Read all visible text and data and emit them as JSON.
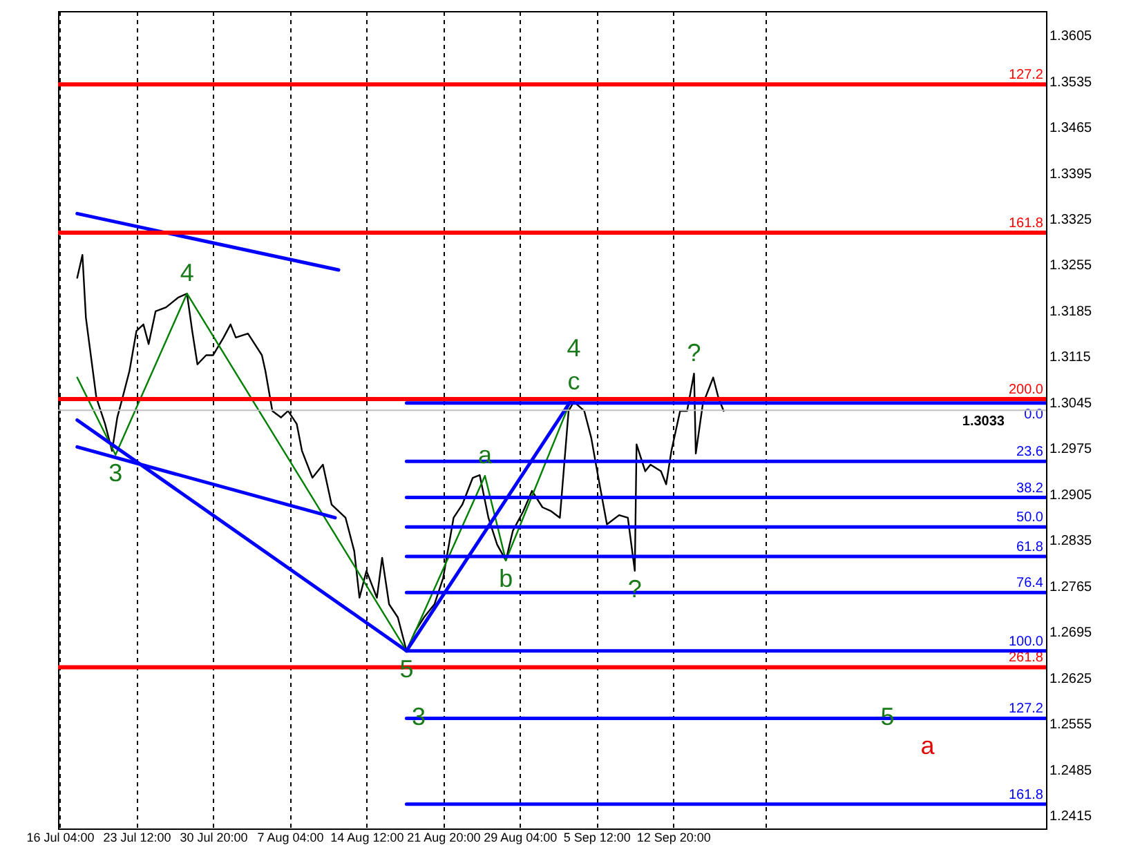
{
  "chart_data": {
    "type": "line",
    "xlim": [
      "--07-16T00:00",
      "--10-18T12:00"
    ],
    "ylim": [
      1.2395,
      1.3642
    ],
    "xticks": [
      {
        "value": "--07-16T04:00",
        "label": "16 Jul 04:00"
      },
      {
        "value": "--07-23T12:00",
        "label": "23 Jul 12:00"
      },
      {
        "value": "--07-30T20:00",
        "label": "30 Jul 20:00"
      },
      {
        "value": "--08-07T04:00",
        "label": "7 Aug 04:00"
      },
      {
        "value": "--08-14T12:00",
        "label": "14 Aug 12:00"
      },
      {
        "value": "--08-21T20:00",
        "label": "21 Aug 20:00"
      },
      {
        "value": "--08-29T04:00",
        "label": "29 Aug 04:00"
      },
      {
        "value": "--09-05T12:00",
        "label": "5 Sep 12:00"
      },
      {
        "value": "--09-12T20:00",
        "label": "12 Sep 20:00"
      },
      {
        "value": "--09-21T16:00",
        "label": null
      }
    ],
    "yticks": [
      1.2415,
      1.2485,
      1.2555,
      1.2625,
      1.2695,
      1.2765,
      1.2835,
      1.2905,
      1.2975,
      1.3045,
      1.3115,
      1.3185,
      1.3255,
      1.3325,
      1.3395,
      1.3465,
      1.3535,
      1.3605
    ],
    "grid": "x",
    "line_style": "solid",
    "series": [
      {
        "color": "#000000",
        "x": [
          "--07-17T20:00",
          "--07-18T08:00",
          "--07-18T16:00",
          "--07-19T04:00",
          "--07-19T16:00",
          "--07-20T12:00",
          "--07-21T04:00",
          "--07-21T16:00",
          "--07-22T04:00",
          "--07-22T20:00",
          "--07-23T12:00",
          "--07-24T04:00",
          "--07-24T16:00",
          "--07-25T08:00",
          "--07-26T08:00",
          "--07-27T12:00",
          "--07-28T08:00",
          "--07-28T20:00",
          "--07-29T08:00",
          "--07-30T04:00",
          "--07-30T20:00",
          "--07-31T20:00",
          "--08-01T12:00",
          "--08-02T00:00",
          "--08-03T04:00",
          "--08-04T12:00",
          "--08-04T20:00",
          "--08-05T12:00",
          "--08-06T08:00",
          "--08-07T00:00",
          "--08-07T20:00",
          "--08-08T08:00",
          "--08-09T08:00",
          "--08-10T08:00",
          "--08-11T04:00",
          "--08-12T12:00",
          "--08-13T08:00",
          "--08-13T20:00",
          "--08-14T12:00",
          "--08-15T12:00",
          "--08-16T00:00",
          "--08-16T16:00",
          "--08-17T12:00",
          "--08-18T08:00",
          "--08-19T04:00",
          "--08-20T00:00",
          "--08-21T00:00",
          "--08-21T20:00",
          "--08-22T20:00",
          "--08-23T16:00",
          "--08-24T16:00",
          "--08-25T08:00",
          "--08-26T04:00",
          "--08-27T00:00",
          "--08-27T20:00",
          "--08-28T12:00",
          "--08-29T12:00",
          "--08-30T08:00",
          "--08-31T08:00",
          "--09-01T04:00",
          "--09-02T00:00",
          "--09-02T20:00",
          "--09-03T08:00",
          "--09-04T08:00",
          "--09-05T00:00",
          "--09-05T12:00",
          "--09-06T12:00",
          "--09-07T16:00",
          "--09-08T12:00",
          "--09-09T04:00",
          "--09-09T08:00",
          "--09-10T04:00",
          "--09-10T16:00",
          "--09-11T16:00",
          "--09-12T04:00",
          "--09-12T16:00",
          "--09-13T12:00",
          "--09-14T04:00",
          "--09-14T20:00",
          "--09-15T00:00",
          "--09-15T16:00",
          "--09-16T16:00",
          "--09-17T04:00",
          "--09-17T16:00"
        ],
        "values": [
          1.3235,
          1.327,
          1.3174,
          1.3113,
          1.3052,
          1.3012,
          1.2971,
          1.3022,
          1.3052,
          1.3093,
          1.3154,
          1.3164,
          1.3134,
          1.3184,
          1.319,
          1.3205,
          1.3211,
          1.3154,
          1.3103,
          1.3117,
          1.3117,
          1.3144,
          1.3164,
          1.3144,
          1.315,
          1.3117,
          1.3093,
          1.3032,
          1.3022,
          1.3032,
          1.3012,
          1.2971,
          1.293,
          1.295,
          1.2889,
          1.2869,
          1.2818,
          1.2747,
          1.2788,
          1.2747,
          1.2808,
          1.2737,
          1.2717,
          1.2666,
          1.2696,
          1.2717,
          1.2737,
          1.2777,
          1.2869,
          1.2889,
          1.293,
          1.2934,
          1.2869,
          1.2828,
          1.2804,
          1.2849,
          1.2879,
          1.291,
          1.2885,
          1.2879,
          1.2869,
          1.3032,
          1.3046,
          1.3032,
          1.2991,
          1.2946,
          1.2859,
          1.2873,
          1.2869,
          1.2788,
          1.2981,
          1.294,
          1.295,
          1.294,
          1.292,
          1.2971,
          1.3032,
          1.3032,
          1.3089,
          1.2967,
          1.3042,
          1.3083,
          1.3052,
          1.3032
        ]
      },
      {
        "color": "#008000",
        "x": [
          "--07-17T20:00",
          "--07-21T12:00",
          "--07-28T08:00",
          "--08-18T08:00",
          "--08-25T20:00",
          "--08-27T20:00",
          "--09-03T00:00"
        ],
        "values": [
          1.3083,
          1.2965,
          1.3211,
          1.2666,
          1.2933,
          1.2804,
          1.3046
        ]
      },
      {
        "color": "#0000ff",
        "x": [
          "--07-17T20:00",
          "--08-11T20:00"
        ],
        "values": [
          1.3333,
          1.3247
        ]
      },
      {
        "color": "#0000ff",
        "x": [
          "--07-17T20:00",
          "--08-18T08:00"
        ],
        "values": [
          1.3018,
          1.2666
        ]
      },
      {
        "color": "#0000ff",
        "x": [
          "--07-17T20:00",
          "--08-11T12:00"
        ],
        "values": [
          1.2977,
          1.2869
        ]
      },
      {
        "color": "#0000ff",
        "x": [
          "--08-18T08:00",
          "--09-03T00:00"
        ],
        "values": [
          1.2666,
          1.3046
        ]
      },
      {
        "name": "127.2",
        "color": "#ff0000",
        "x": [
          "--07-16T00:00",
          "--10-18T12:00"
        ],
        "values": [
          1.353,
          1.353
        ]
      },
      {
        "name": "161.8",
        "color": "#ff0000",
        "x": [
          "--07-16T00:00",
          "--10-18T12:00"
        ],
        "values": [
          1.3304,
          1.3304
        ]
      },
      {
        "name": "200.0",
        "color": "#ff0000",
        "x": [
          "--07-16T00:00",
          "--10-18T12:00"
        ],
        "values": [
          1.305,
          1.305
        ]
      },
      {
        "name": "261.8",
        "color": "#ff0000",
        "x": [
          "--07-16T00:00",
          "--10-18T12:00"
        ],
        "values": [
          1.2641,
          1.2641
        ]
      },
      {
        "name": "0.0",
        "color": "#0000ff",
        "x": [
          "--08-18T08:00",
          "--10-18T12:00"
        ],
        "values": [
          1.3044,
          1.3044
        ]
      },
      {
        "name": "23.6",
        "color": "#0000ff",
        "x": [
          "--08-18T08:00",
          "--10-18T12:00"
        ],
        "values": [
          1.2955,
          1.2955
        ]
      },
      {
        "name": "38.2",
        "color": "#0000ff",
        "x": [
          "--08-18T08:00",
          "--10-18T12:00"
        ],
        "values": [
          1.29,
          1.29
        ]
      },
      {
        "name": "50.0",
        "color": "#0000ff",
        "x": [
          "--08-18T08:00",
          "--10-18T12:00"
        ],
        "values": [
          1.2855,
          1.2855
        ]
      },
      {
        "name": "61.8",
        "color": "#0000ff",
        "x": [
          "--08-18T08:00",
          "--10-18T12:00"
        ],
        "values": [
          1.281,
          1.281
        ]
      },
      {
        "name": "76.4",
        "color": "#0000ff",
        "x": [
          "--08-18T08:00",
          "--10-18T12:00"
        ],
        "values": [
          1.2755,
          1.2755
        ]
      },
      {
        "name": "100.0",
        "color": "#0000ff",
        "x": [
          "--08-18T08:00",
          "--10-18T12:00"
        ],
        "values": [
          1.2666,
          1.2666
        ]
      },
      {
        "name": "127.2",
        "color": "#0000ff",
        "x": [
          "--08-18T08:00",
          "--10-18T12:00"
        ],
        "values": [
          1.2563,
          1.2563
        ]
      },
      {
        "name": "161.8",
        "color": "#0000ff",
        "x": [
          "--08-18T08:00",
          "--10-18T12:00"
        ],
        "values": [
          1.2432,
          1.2432
        ]
      }
    ],
    "ref_lines": [
      {
        "axis": "y",
        "value": 1.3033,
        "label": "1.3033",
        "color": "#c0c0c0"
      }
    ],
    "annotations": [
      {
        "text": "4",
        "x": "--07-28T08:00",
        "y": 1.3211
      },
      {
        "text": "3",
        "x": "--07-21T12:00",
        "y": 1.2965
      },
      {
        "text": "5",
        "x": "--08-18T08:00",
        "y": 1.2666
      },
      {
        "text": "a",
        "x": "--08-25T20:00",
        "y": 1.2933
      },
      {
        "text": "b",
        "x": "--08-27T20:00",
        "y": 1.2804
      },
      {
        "text": "c",
        "x": "--09-03T08:00",
        "y": 1.3046
      },
      {
        "text": "4",
        "x": "--09-03T08:00",
        "y": 1.3046
      },
      {
        "text": "?",
        "x": "--09-14T20:00",
        "y": 1.3089
      },
      {
        "text": "?",
        "x": "--09-09T04:00",
        "y": 1.2788
      },
      {
        "text": "3",
        "x": "--08-19T12:00",
        "y": 1.2563
      },
      {
        "text": "5",
        "x": "--10-03T08:00",
        "y": 1.2563
      },
      "a"
    ]
  }
}
